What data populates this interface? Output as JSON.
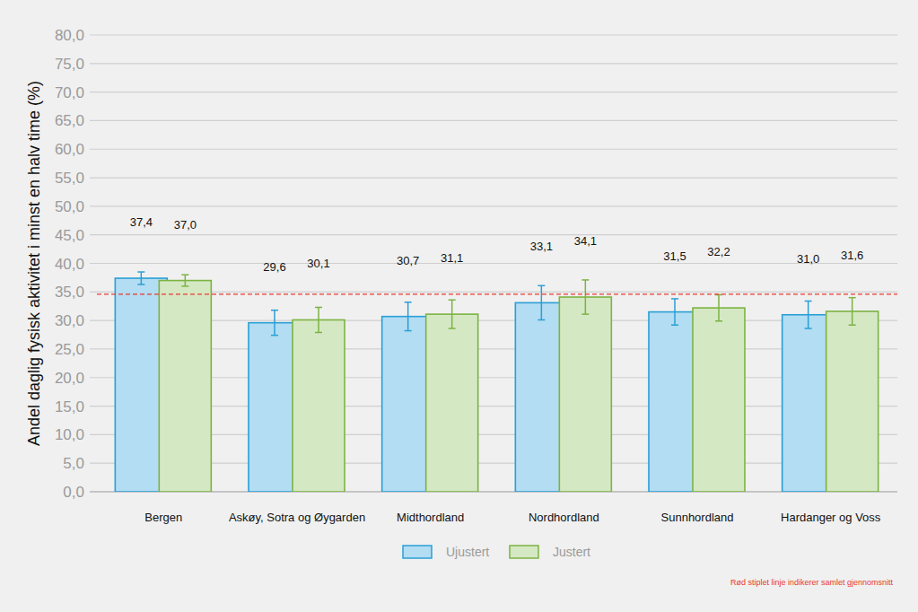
{
  "chart_data": {
    "type": "bar",
    "y_label": "Andel daglig fysisk aktivitet i minst en halv time (%)",
    "categories": [
      "Bergen",
      "Askøy, Sotra og Øygarden",
      "Midthordland",
      "Nordhordland",
      "Sunnhordland",
      "Hardanger og Voss"
    ],
    "series": [
      {
        "name": "Ujustert",
        "color": "#2a9fd6",
        "values": [
          37.4,
          29.6,
          30.7,
          33.1,
          31.5,
          31.0
        ],
        "value_labels": [
          "37,4",
          "29,6",
          "30,7",
          "33,1",
          "31,5",
          "31,0"
        ],
        "errors": [
          1.1,
          2.2,
          2.5,
          3.0,
          2.3,
          2.4
        ]
      },
      {
        "name": "Justert",
        "color": "#7cb342",
        "values": [
          37.0,
          30.1,
          31.1,
          34.1,
          32.2,
          31.6
        ],
        "value_labels": [
          "37,0",
          "30,1",
          "31,1",
          "34,1",
          "32,2",
          "31,6"
        ],
        "errors": [
          1.0,
          2.2,
          2.5,
          3.0,
          2.3,
          2.4
        ]
      }
    ],
    "average_line": 34.6,
    "note": "Rød stiplet linje indikerer samlet gjennomsnitt",
    "ylim": [
      0,
      80
    ],
    "yticks": [
      {
        "value": 0,
        "label": "0,0"
      },
      {
        "value": 5,
        "label": "5,0"
      },
      {
        "value": 10,
        "label": "10,0"
      },
      {
        "value": 15,
        "label": "15,0"
      },
      {
        "value": 20,
        "label": "20,0"
      },
      {
        "value": 25,
        "label": "25,0"
      },
      {
        "value": 30,
        "label": "30,0"
      },
      {
        "value": 35,
        "label": "35,0"
      },
      {
        "value": 40,
        "label": "40,0"
      },
      {
        "value": 45,
        "label": "45,0"
      },
      {
        "value": 50,
        "label": "50,0"
      },
      {
        "value": 55,
        "label": "55,0"
      },
      {
        "value": 60,
        "label": "60,0"
      },
      {
        "value": 65,
        "label": "65,0"
      },
      {
        "value": 70,
        "label": "70,0"
      },
      {
        "value": 75,
        "label": "75,0"
      },
      {
        "value": 80,
        "label": "80,0"
      }
    ],
    "grid": true,
    "legend": "bottom",
    "data_labels": true
  }
}
